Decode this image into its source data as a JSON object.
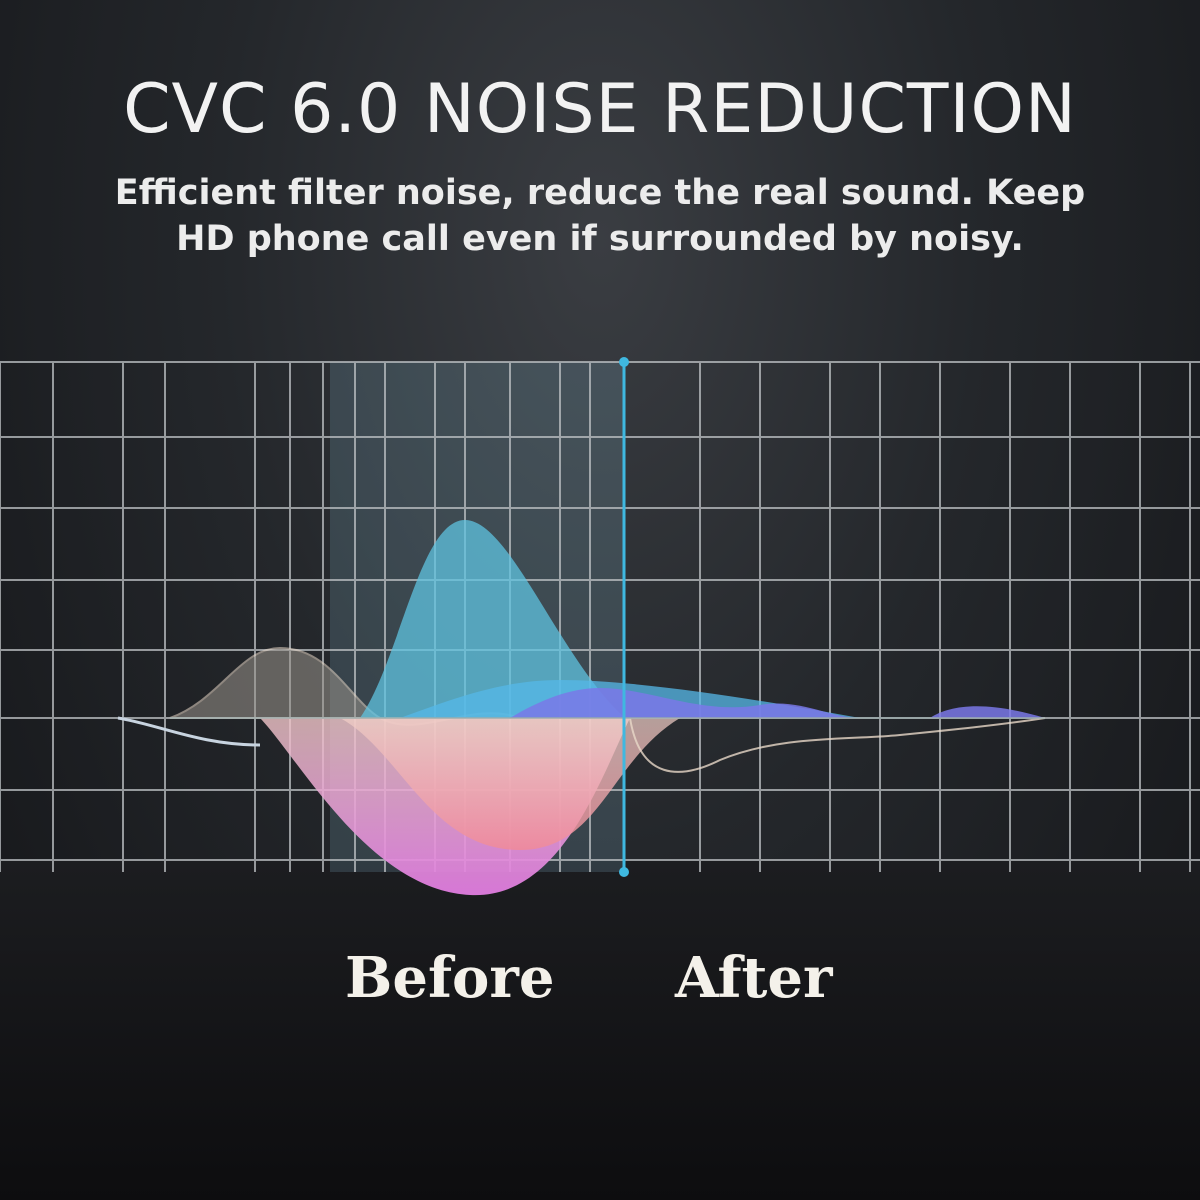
{
  "title": "CVC 6.0 NOISE REDUCTION",
  "subtitle_line1": "Efficient filter noise, reduce the real sound. Keep",
  "subtitle_line2": "HD phone call even if surrounded by noisy.",
  "labels": {
    "before": "Before",
    "after": "After"
  },
  "colors": {
    "divider": "#3fb8e0",
    "wave_blue": "#5fc3e0",
    "wave_pink": "#e89ad8",
    "wave_purple": "#7a78e8",
    "grid": "#bfc3c6"
  }
}
